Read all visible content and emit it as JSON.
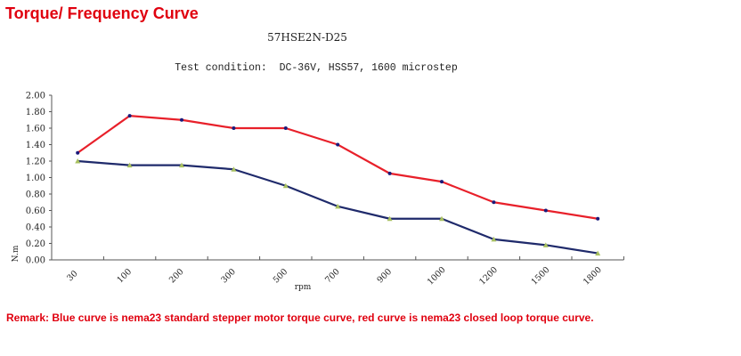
{
  "page": {
    "title": "Torque/ Frequency Curve",
    "remark": "Remark: Blue curve is nema23 standard stepper motor torque curve, red curve is nema23 closed loop torque curve."
  },
  "chart_data": {
    "type": "line",
    "title": "57HSE2N-D25",
    "subtitle": "Test condition:  DC-36V, HSS57, 1600 microstep",
    "xlabel": "rpm",
    "ylabel": "N.m",
    "categories": [
      "30",
      "100",
      "200",
      "300",
      "500",
      "700",
      "900",
      "1000",
      "1200",
      "1500",
      "1800"
    ],
    "ylim": [
      0,
      2.0
    ],
    "yticks": [
      "0.00",
      "0.20",
      "0.40",
      "0.60",
      "0.80",
      "1.00",
      "1.20",
      "1.40",
      "1.60",
      "1.80",
      "2.00"
    ],
    "grid": false,
    "series": [
      {
        "name": "closed loop (red)",
        "color": "#e8202a",
        "marker_color": "#1a1a7a",
        "values": [
          1.3,
          1.75,
          1.7,
          1.6,
          1.6,
          1.4,
          1.05,
          0.95,
          0.7,
          0.6,
          0.5
        ]
      },
      {
        "name": "standard stepper (blue)",
        "color": "#1f2a6b",
        "marker_color": "#a8c060",
        "values": [
          1.2,
          1.15,
          1.15,
          1.1,
          0.9,
          0.65,
          0.5,
          0.5,
          0.25,
          0.18,
          0.08
        ]
      }
    ]
  }
}
